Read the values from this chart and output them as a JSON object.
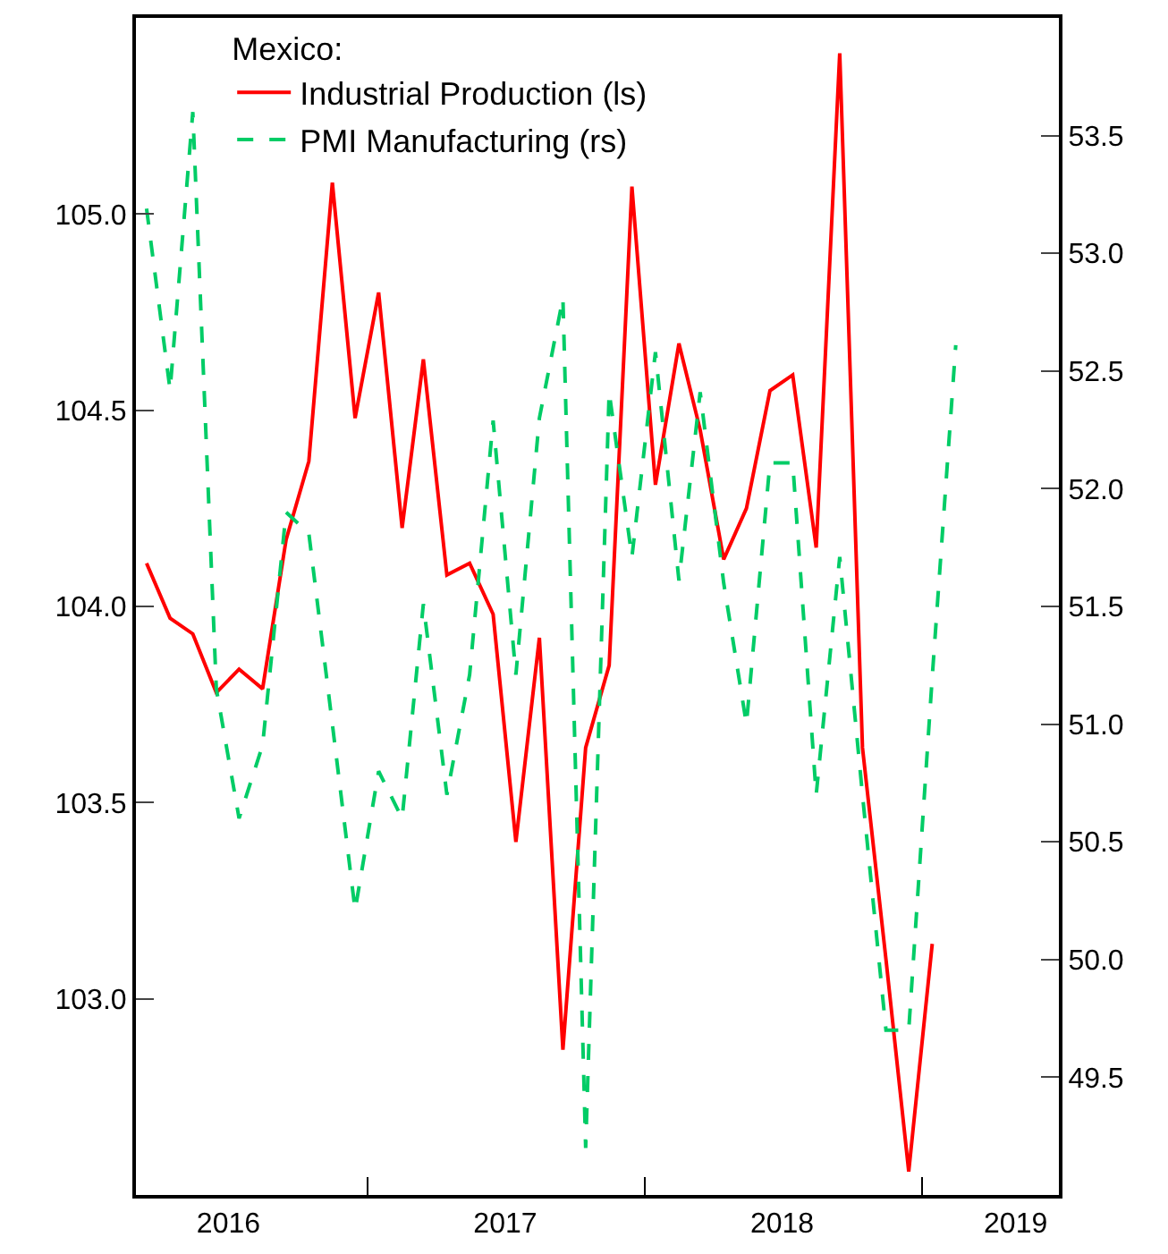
{
  "chart_data": {
    "type": "line",
    "legend_title": "Mexico:",
    "legend": "top left",
    "marker": "none",
    "x": [
      "2016-03-15",
      "2016-04-15",
      "2016-05-15",
      "2016-06-15",
      "2016-07-15",
      "2016-08-15",
      "2016-09-15",
      "2016-10-15",
      "2016-11-15",
      "2016-12-15",
      "2017-01-15",
      "2017-02-15",
      "2017-03-15",
      "2017-04-15",
      "2017-05-15",
      "2017-06-15",
      "2017-07-15",
      "2017-08-15",
      "2017-09-15",
      "2017-10-15",
      "2017-11-15",
      "2017-12-15",
      "2018-01-15",
      "2018-02-15",
      "2018-03-15",
      "2018-04-15",
      "2018-05-15",
      "2018-06-15",
      "2018-07-15",
      "2018-08-15",
      "2018-09-15",
      "2018-10-15",
      "2018-11-15",
      "2018-12-15",
      "2019-01-15",
      "2019-02-15"
    ],
    "series": [
      {
        "name": "Industrial Production (ls)",
        "color": "#ff0000",
        "line_style": "solid",
        "values": [
          104.11,
          103.97,
          103.93,
          103.78,
          103.84,
          103.79,
          104.17,
          104.37,
          105.08,
          104.48,
          104.8,
          104.2,
          104.63,
          104.08,
          104.11,
          103.98,
          103.4,
          103.92,
          102.87,
          103.64,
          103.85,
          105.07,
          104.31,
          104.67,
          104.45,
          104.12,
          104.25,
          104.55,
          104.59,
          104.15,
          105.41,
          103.64,
          103.1,
          102.56,
          103.14,
          null
        ]
      },
      {
        "name": "PMI Manufacturing (rs)",
        "color": "#00cc66",
        "line_style": "dashed",
        "axis": "y2",
        "values": [
          53.19,
          52.42,
          53.6,
          51.15,
          50.6,
          50.91,
          51.9,
          51.81,
          51.0,
          50.21,
          50.8,
          50.6,
          51.51,
          50.7,
          51.21,
          52.29,
          51.21,
          52.3,
          52.81,
          49.2,
          52.41,
          51.71,
          52.58,
          51.61,
          52.41,
          51.6,
          51.0,
          52.11,
          52.11,
          50.7,
          51.71,
          50.7,
          49.7,
          49.7,
          51.2,
          52.61
        ]
      }
    ],
    "xlim": [
      "2016-03-01",
      "2019-07-01"
    ],
    "xticks": [
      {
        "value": "2016-07-01",
        "label": "2016"
      },
      {
        "value": "2017-07-01",
        "label": "2017"
      },
      {
        "value": "2018-07-01",
        "label": "2018"
      },
      {
        "value": "2019-05-05",
        "label": "2019"
      },
      {
        "value": "2017-01-01",
        "label": null
      },
      {
        "value": "2018-01-01",
        "label": null
      },
      {
        "value": "2019-01-01",
        "label": null
      }
    ],
    "ylim": [
      102.5,
      105.5
    ],
    "yticks": [
      {
        "value": 103,
        "label": "103.0"
      },
      {
        "value": 103.5,
        "label": "103.5"
      },
      {
        "value": 104,
        "label": "104.0"
      },
      {
        "value": 104.5,
        "label": "104.5"
      },
      {
        "value": 105,
        "label": "105.0"
      }
    ],
    "y2lim": [
      49,
      54
    ],
    "y2ticks": [
      {
        "value": 49.5,
        "label": "49.5"
      },
      {
        "value": 50,
        "label": "50.0"
      },
      {
        "value": 50.5,
        "label": "50.5"
      },
      {
        "value": 51,
        "label": "51.0"
      },
      {
        "value": 51.5,
        "label": "51.5"
      },
      {
        "value": 52,
        "label": "52.0"
      },
      {
        "value": 52.5,
        "label": "52.5"
      },
      {
        "value": 53,
        "label": "53.0"
      },
      {
        "value": 53.5,
        "label": "53.5"
      }
    ]
  }
}
